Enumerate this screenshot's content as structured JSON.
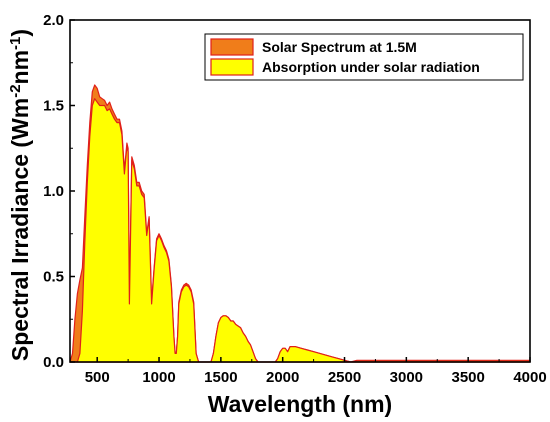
{
  "chart_data": {
    "type": "area",
    "xlabel": "Wavelength (nm)",
    "ylabel": "Spectral Irradiance (Wm",
    "ylabel_unit_parts": [
      "-2",
      "nm",
      "-1",
      ")"
    ],
    "xlim": [
      280,
      4000
    ],
    "ylim": [
      0,
      2.0
    ],
    "x_ticks": [
      500,
      1000,
      1500,
      2000,
      2500,
      3000,
      3500,
      4000
    ],
    "y_ticks": [
      0.0,
      0.5,
      1.0,
      1.5,
      2.0
    ],
    "x_tick_labels": [
      "500",
      "1000",
      "1500",
      "2000",
      "2500",
      "3000",
      "3500",
      "4000"
    ],
    "y_tick_labels": [
      "0.0",
      "0.5",
      "1.0",
      "1.5",
      "2.0"
    ],
    "legend_position": "top-right",
    "series": [
      {
        "name": "Solar Spectrum at 1.5M",
        "color": "#f07d1a",
        "edge_color": "#e0201a",
        "x": [
          280,
          300,
          320,
          340,
          360,
          380,
          400,
          420,
          440,
          460,
          480,
          500,
          520,
          540,
          560,
          580,
          600,
          620,
          640,
          660,
          680,
          700,
          720,
          740,
          750,
          760,
          780,
          800,
          820,
          840,
          860,
          880,
          900,
          920,
          940,
          960,
          980,
          1000,
          1020,
          1040,
          1060,
          1080,
          1100,
          1120,
          1130,
          1140,
          1150,
          1160,
          1180,
          1200,
          1220,
          1240,
          1260,
          1280,
          1300,
          1320,
          1340,
          1360,
          1380,
          1400,
          1420,
          1440,
          1460,
          1480,
          1500,
          1520,
          1540,
          1560,
          1580,
          1600,
          1620,
          1640,
          1660,
          1680,
          1700,
          1720,
          1740,
          1760,
          1780,
          1800,
          1820,
          1840,
          1860,
          1880,
          1900,
          1920,
          1940,
          1960,
          1980,
          2000,
          2020,
          2040,
          2060,
          2080,
          2100,
          2150,
          2200,
          2250,
          2300,
          2350,
          2400,
          2450,
          2500,
          2550,
          2600,
          2700,
          2800,
          2900,
          3000,
          3100,
          3200,
          3300,
          3400,
          3500,
          3600,
          3700,
          3800,
          3900,
          4000
        ],
        "values": [
          0.0,
          0.05,
          0.25,
          0.4,
          0.48,
          0.55,
          0.85,
          1.15,
          1.4,
          1.58,
          1.62,
          1.6,
          1.55,
          1.54,
          1.53,
          1.5,
          1.52,
          1.48,
          1.45,
          1.42,
          1.42,
          1.35,
          1.12,
          1.28,
          1.25,
          0.35,
          1.2,
          1.15,
          1.05,
          1.05,
          1.0,
          0.98,
          0.75,
          0.85,
          0.35,
          0.55,
          0.72,
          0.75,
          0.72,
          0.68,
          0.65,
          0.6,
          0.45,
          0.15,
          0.05,
          0.05,
          0.15,
          0.35,
          0.42,
          0.45,
          0.46,
          0.45,
          0.42,
          0.35,
          0.05,
          0.0,
          0.0,
          0.0,
          0.0,
          0.0,
          0.0,
          0.05,
          0.15,
          0.23,
          0.26,
          0.27,
          0.27,
          0.26,
          0.24,
          0.24,
          0.22,
          0.21,
          0.2,
          0.17,
          0.15,
          0.12,
          0.1,
          0.06,
          0.02,
          0.0,
          0.0,
          0.0,
          0.0,
          0.0,
          0.0,
          0.0,
          0.0,
          0.02,
          0.06,
          0.08,
          0.08,
          0.06,
          0.09,
          0.09,
          0.09,
          0.08,
          0.07,
          0.06,
          0.05,
          0.04,
          0.03,
          0.02,
          0.01,
          0.0,
          0.01,
          0.01,
          0.01,
          0.01,
          0.01,
          0.01,
          0.01,
          0.01,
          0.01,
          0.01,
          0.01,
          0.01,
          0.01,
          0.01,
          0.01
        ]
      },
      {
        "name": "Absorption under solar radiation",
        "color": "#ffff00",
        "edge_color": "#e0201a",
        "x": [
          280,
          300,
          320,
          340,
          360,
          380,
          400,
          420,
          440,
          460,
          480,
          500,
          520,
          540,
          560,
          580,
          600,
          620,
          640,
          660,
          680,
          700,
          720,
          740,
          750,
          760,
          780,
          800,
          820,
          840,
          860,
          880,
          900,
          920,
          940,
          960,
          980,
          1000,
          1020,
          1040,
          1060,
          1080,
          1100,
          1120,
          1130,
          1140,
          1150,
          1160,
          1180,
          1200,
          1220,
          1240,
          1260,
          1280,
          1300,
          1320,
          1340,
          1360,
          1380,
          1400,
          1420,
          1440,
          1460,
          1480,
          1500,
          1520,
          1540,
          1560,
          1580,
          1600,
          1620,
          1640,
          1660,
          1680,
          1700,
          1720,
          1740,
          1760,
          1780,
          1800,
          1820,
          1840,
          1860,
          1880,
          1900,
          1920,
          1940,
          1960,
          1980,
          2000,
          2020,
          2040,
          2060,
          2080,
          2100,
          2150,
          2200,
          2250,
          2300,
          2350,
          2400,
          2450,
          2500,
          2550,
          2600,
          2700,
          2800,
          2900,
          3000,
          3100,
          3200,
          3300,
          3400,
          3500,
          3600,
          3700,
          3800,
          3900,
          4000
        ],
        "values": [
          0.0,
          0.0,
          0.0,
          0.0,
          0.05,
          0.3,
          0.7,
          1.05,
          1.32,
          1.5,
          1.54,
          1.52,
          1.5,
          1.5,
          1.5,
          1.47,
          1.48,
          1.45,
          1.42,
          1.4,
          1.4,
          1.33,
          1.1,
          1.26,
          1.23,
          0.34,
          1.18,
          1.13,
          1.03,
          1.03,
          0.98,
          0.96,
          0.74,
          0.84,
          0.34,
          0.54,
          0.71,
          0.74,
          0.71,
          0.67,
          0.64,
          0.59,
          0.44,
          0.15,
          0.05,
          0.05,
          0.15,
          0.34,
          0.41,
          0.44,
          0.45,
          0.44,
          0.41,
          0.34,
          0.05,
          0.0,
          0.0,
          0.0,
          0.0,
          0.0,
          0.0,
          0.05,
          0.15,
          0.23,
          0.26,
          0.27,
          0.27,
          0.26,
          0.24,
          0.24,
          0.22,
          0.21,
          0.2,
          0.17,
          0.15,
          0.12,
          0.1,
          0.06,
          0.02,
          0.0,
          0.0,
          0.0,
          0.0,
          0.0,
          0.0,
          0.0,
          0.0,
          0.02,
          0.06,
          0.08,
          0.08,
          0.06,
          0.09,
          0.09,
          0.09,
          0.08,
          0.07,
          0.06,
          0.05,
          0.04,
          0.03,
          0.02,
          0.01,
          0.0,
          0.0,
          0.0,
          0.0,
          0.0,
          0.0,
          0.0,
          0.0,
          0.0,
          0.0,
          0.0,
          0.0,
          0.0,
          0.0,
          0.0,
          0.0
        ]
      }
    ]
  }
}
